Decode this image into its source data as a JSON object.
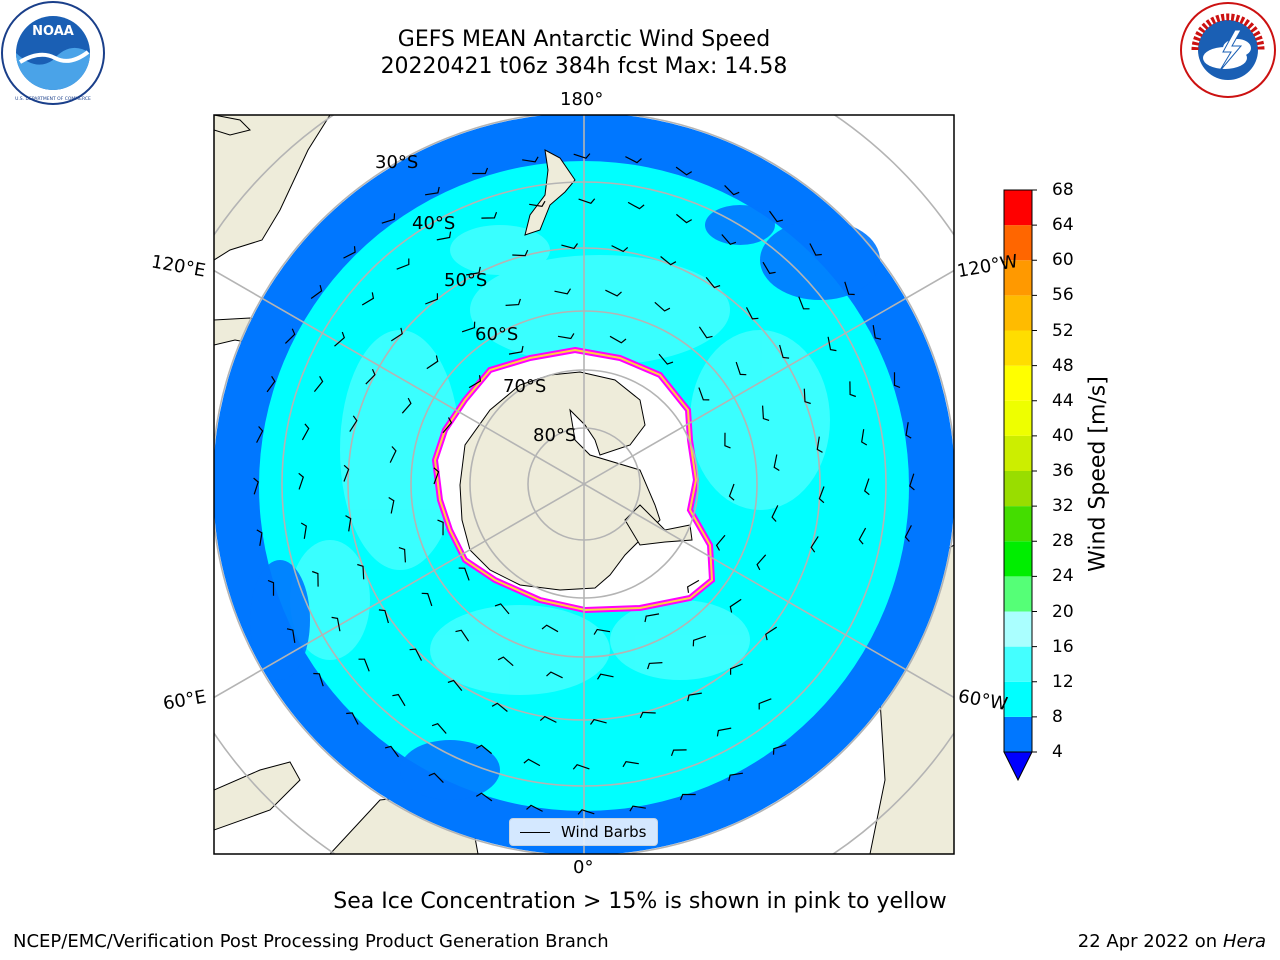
{
  "header": {
    "title_line1": "GEFS MEAN Antarctic Wind Speed",
    "title_line2": "20220421 t06z 384h fcst   Max: 14.58"
  },
  "logos": {
    "left": {
      "name": "noaa-logo",
      "text": "NOAA",
      "ring_text": "NATIONAL OCEANIC AND ATMOSPHERIC ADMINISTRATION · U.S. DEPARTMENT OF COMMERCE"
    },
    "right": {
      "name": "nws-logo",
      "ring_text": "NATIONAL WEATHER SERVICE"
    }
  },
  "map": {
    "projection": "south-polar-stereographic",
    "longitude_labels": {
      "top": "180°",
      "bottom": "0°",
      "upper_left": "120°E",
      "upper_right": "120°W",
      "lower_left": "60°E",
      "lower_right": "60°W"
    },
    "latitude_labels": [
      "30°S",
      "40°S",
      "50°S",
      "60°S",
      "70°S",
      "80°S"
    ],
    "legend": {
      "label": "Wind Barbs"
    },
    "colors": {
      "land": "#eeecda",
      "ice_interior": "#ffffff",
      "sea_ice_edge": [
        "#ff00ff",
        "#ffd040",
        "#ffff60"
      ],
      "grid": "#b4b4b4"
    }
  },
  "colorbar": {
    "label": "Wind Speed [m/s]",
    "ticks": [
      "68",
      "64",
      "60",
      "56",
      "52",
      "48",
      "44",
      "40",
      "36",
      "32",
      "28",
      "24",
      "20",
      "16",
      "12",
      "8",
      "4"
    ],
    "levels": [
      4,
      8,
      12,
      16,
      20,
      24,
      28,
      32,
      36,
      40,
      44,
      48,
      52,
      56,
      60,
      64,
      68
    ],
    "colors": [
      "#0077ff",
      "#00ffff",
      "#44ffff",
      "#aaffff",
      "#55ff77",
      "#00ee00",
      "#44dd00",
      "#99dd00",
      "#ccee00",
      "#eeff00",
      "#ffff00",
      "#ffdd00",
      "#ffbb00",
      "#ff9900",
      "#ff6600",
      "#ff3300",
      "#ff0000"
    ],
    "under_color": "#0000ff"
  },
  "footer": {
    "note": "Sea Ice Concentration > 15% is shown in pink to yellow",
    "credit": "NCEP/EMC/Verification Post Processing Product Generation Branch",
    "date": "22 Apr 2022 on",
    "machine": "Hera"
  }
}
